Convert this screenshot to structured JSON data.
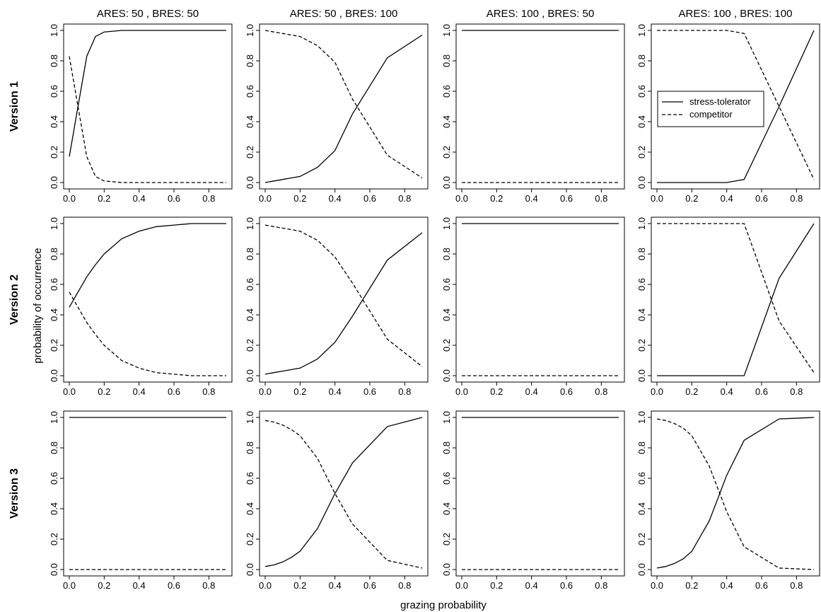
{
  "column_titles": [
    "ARES: 50 , BRES: 50",
    "ARES: 50 , BRES: 100",
    "ARES: 100 , BRES: 50",
    "ARES: 100 , BRES: 100"
  ],
  "row_titles": [
    "Version 1",
    "Version 2",
    "Version 3"
  ],
  "ylabel": "probability of occurrence",
  "xlabel": "grazing probability",
  "legend": {
    "entries": [
      "stress-tolerator",
      "competitor"
    ],
    "placement": "inside panel row 1, column 4, middle-left"
  },
  "chart_data": {
    "type": "line",
    "grid": false,
    "xlim": [
      0,
      0.9
    ],
    "ylim": [
      0,
      1
    ],
    "x_ticks": [
      "0.0",
      "0.2",
      "0.4",
      "0.6",
      "0.8"
    ],
    "y_ticks": [
      "0.0",
      "0.2",
      "0.4",
      "0.6",
      "0.8",
      "1.0"
    ],
    "x": [
      0,
      0.05,
      0.1,
      0.15,
      0.2,
      0.3,
      0.4,
      0.5,
      0.7,
      0.9
    ],
    "series_styles": {
      "stress-tolerator": "solid",
      "competitor": "dashed"
    },
    "panels": [
      {
        "row": 0,
        "col": 0,
        "series": [
          {
            "name": "stress-tolerator",
            "values": [
              0.17,
              0.5,
              0.83,
              0.96,
              0.99,
              1.0,
              1.0,
              1.0,
              1.0,
              1.0
            ]
          },
          {
            "name": "competitor",
            "values": [
              0.83,
              0.5,
              0.17,
              0.04,
              0.01,
              0.0,
              0.0,
              0.0,
              0.0,
              0.0
            ]
          }
        ]
      },
      {
        "row": 0,
        "col": 1,
        "series": [
          {
            "name": "stress-tolerator",
            "values": [
              0.0,
              0.01,
              0.02,
              0.03,
              0.04,
              0.1,
              0.21,
              0.45,
              0.82,
              0.97
            ]
          },
          {
            "name": "competitor",
            "values": [
              1.0,
              0.99,
              0.98,
              0.97,
              0.96,
              0.9,
              0.79,
              0.55,
              0.18,
              0.03
            ]
          }
        ]
      },
      {
        "row": 0,
        "col": 2,
        "series": [
          {
            "name": "stress-tolerator",
            "values": [
              1.0,
              1.0,
              1.0,
              1.0,
              1.0,
              1.0,
              1.0,
              1.0,
              1.0,
              1.0
            ]
          },
          {
            "name": "competitor",
            "values": [
              0.0,
              0.0,
              0.0,
              0.0,
              0.0,
              0.0,
              0.0,
              0.0,
              0.0,
              0.0
            ]
          }
        ]
      },
      {
        "row": 0,
        "col": 3,
        "series": [
          {
            "name": "stress-tolerator",
            "values": [
              0.0,
              0.0,
              0.0,
              0.0,
              0.0,
              0.0,
              0.0,
              0.02,
              0.5,
              1.0
            ]
          },
          {
            "name": "competitor",
            "values": [
              1.0,
              1.0,
              1.0,
              1.0,
              1.0,
              1.0,
              1.0,
              0.98,
              0.5,
              0.02
            ]
          }
        ]
      },
      {
        "row": 1,
        "col": 0,
        "series": [
          {
            "name": "stress-tolerator",
            "values": [
              0.45,
              0.55,
              0.65,
              0.73,
              0.8,
              0.9,
              0.95,
              0.98,
              1.0,
              1.0
            ]
          },
          {
            "name": "competitor",
            "values": [
              0.55,
              0.45,
              0.35,
              0.27,
              0.2,
              0.1,
              0.05,
              0.02,
              0.0,
              0.0
            ]
          }
        ]
      },
      {
        "row": 1,
        "col": 1,
        "series": [
          {
            "name": "stress-tolerator",
            "values": [
              0.01,
              0.02,
              0.03,
              0.04,
              0.05,
              0.11,
              0.22,
              0.39,
              0.76,
              0.94
            ]
          },
          {
            "name": "competitor",
            "values": [
              0.99,
              0.98,
              0.97,
              0.96,
              0.95,
              0.89,
              0.78,
              0.61,
              0.24,
              0.06
            ]
          }
        ]
      },
      {
        "row": 1,
        "col": 2,
        "series": [
          {
            "name": "stress-tolerator",
            "values": [
              1.0,
              1.0,
              1.0,
              1.0,
              1.0,
              1.0,
              1.0,
              1.0,
              1.0,
              1.0
            ]
          },
          {
            "name": "competitor",
            "values": [
              0.0,
              0.0,
              0.0,
              0.0,
              0.0,
              0.0,
              0.0,
              0.0,
              0.0,
              0.0
            ]
          }
        ]
      },
      {
        "row": 1,
        "col": 3,
        "series": [
          {
            "name": "stress-tolerator",
            "values": [
              0.0,
              0.0,
              0.0,
              0.0,
              0.0,
              0.0,
              0.0,
              0.0,
              0.64,
              1.0
            ]
          },
          {
            "name": "competitor",
            "values": [
              1.0,
              1.0,
              1.0,
              1.0,
              1.0,
              1.0,
              1.0,
              1.0,
              0.36,
              0.02
            ]
          }
        ]
      },
      {
        "row": 2,
        "col": 0,
        "series": [
          {
            "name": "stress-tolerator",
            "values": [
              1.0,
              1.0,
              1.0,
              1.0,
              1.0,
              1.0,
              1.0,
              1.0,
              1.0,
              1.0
            ]
          },
          {
            "name": "competitor",
            "values": [
              0.0,
              0.0,
              0.0,
              0.0,
              0.0,
              0.0,
              0.0,
              0.0,
              0.0,
              0.0
            ]
          }
        ]
      },
      {
        "row": 2,
        "col": 1,
        "series": [
          {
            "name": "stress-tolerator",
            "values": [
              0.02,
              0.03,
              0.05,
              0.08,
              0.12,
              0.27,
              0.5,
              0.7,
              0.94,
              1.0
            ]
          },
          {
            "name": "competitor",
            "values": [
              0.98,
              0.97,
              0.95,
              0.92,
              0.88,
              0.73,
              0.5,
              0.3,
              0.06,
              0.01
            ]
          }
        ]
      },
      {
        "row": 2,
        "col": 2,
        "series": [
          {
            "name": "stress-tolerator",
            "values": [
              1.0,
              1.0,
              1.0,
              1.0,
              1.0,
              1.0,
              1.0,
              1.0,
              1.0,
              1.0
            ]
          },
          {
            "name": "competitor",
            "values": [
              0.0,
              0.0,
              0.0,
              0.0,
              0.0,
              0.0,
              0.0,
              0.0,
              0.0,
              0.0
            ]
          }
        ]
      },
      {
        "row": 2,
        "col": 3,
        "series": [
          {
            "name": "stress-tolerator",
            "values": [
              0.01,
              0.02,
              0.04,
              0.07,
              0.12,
              0.32,
              0.62,
              0.85,
              0.99,
              1.0
            ]
          },
          {
            "name": "competitor",
            "values": [
              0.99,
              0.98,
              0.96,
              0.93,
              0.88,
              0.68,
              0.38,
              0.15,
              0.01,
              0.0
            ]
          }
        ]
      }
    ]
  }
}
